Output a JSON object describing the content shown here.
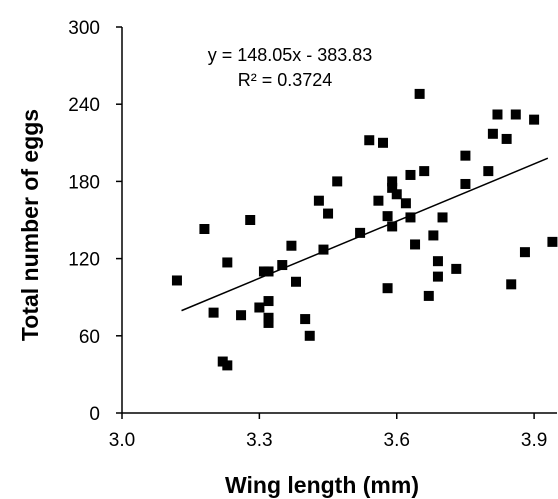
{
  "chart_data": {
    "type": "scatter",
    "title": "",
    "xlabel": "Wing length (mm)",
    "ylabel": "Total number of eggs",
    "xlim": [
      3.0,
      3.95
    ],
    "ylim": [
      0,
      300
    ],
    "xticks": [
      3.0,
      3.3,
      3.6,
      3.9
    ],
    "xtick_labels": [
      "3.0",
      "3.3",
      "3.6",
      "3.9"
    ],
    "yticks": [
      0,
      60,
      120,
      180,
      240,
      300
    ],
    "ytick_labels": [
      "0",
      "60",
      "120",
      "180",
      "240",
      "300"
    ],
    "grid": false,
    "legend": "none",
    "marker_color": "#000000",
    "annotations": {
      "equation": "y = 148.05x - 383.83",
      "r_squared": "R² = 0.3724"
    },
    "trendline": {
      "slope": 148.05,
      "intercept": -383.83,
      "x_range": [
        3.13,
        3.93
      ]
    },
    "series": [
      {
        "points": [
          [
            3.12,
            103
          ],
          [
            3.18,
            143
          ],
          [
            3.2,
            78
          ],
          [
            3.22,
            40
          ],
          [
            3.23,
            37
          ],
          [
            3.23,
            117
          ],
          [
            3.26,
            76
          ],
          [
            3.28,
            150
          ],
          [
            3.3,
            82
          ],
          [
            3.31,
            110
          ],
          [
            3.32,
            87
          ],
          [
            3.32,
            110
          ],
          [
            3.32,
            74
          ],
          [
            3.32,
            70
          ],
          [
            3.35,
            115
          ],
          [
            3.37,
            130
          ],
          [
            3.38,
            102
          ],
          [
            3.4,
            73
          ],
          [
            3.41,
            60
          ],
          [
            3.43,
            165
          ],
          [
            3.44,
            127
          ],
          [
            3.45,
            155
          ],
          [
            3.47,
            180
          ],
          [
            3.52,
            140
          ],
          [
            3.54,
            212
          ],
          [
            3.56,
            165
          ],
          [
            3.57,
            210
          ],
          [
            3.58,
            97
          ],
          [
            3.58,
            153
          ],
          [
            3.59,
            175
          ],
          [
            3.59,
            180
          ],
          [
            3.59,
            145
          ],
          [
            3.6,
            170
          ],
          [
            3.62,
            163
          ],
          [
            3.63,
            185
          ],
          [
            3.63,
            152
          ],
          [
            3.64,
            131
          ],
          [
            3.65,
            248
          ],
          [
            3.66,
            188
          ],
          [
            3.67,
            91
          ],
          [
            3.68,
            138
          ],
          [
            3.69,
            106
          ],
          [
            3.69,
            118
          ],
          [
            3.7,
            152
          ],
          [
            3.73,
            112
          ],
          [
            3.75,
            200
          ],
          [
            3.75,
            178
          ],
          [
            3.8,
            188
          ],
          [
            3.81,
            217
          ],
          [
            3.82,
            232
          ],
          [
            3.84,
            213
          ],
          [
            3.85,
            100
          ],
          [
            3.86,
            232
          ],
          [
            3.88,
            125
          ],
          [
            3.9,
            228
          ],
          [
            3.94,
            133
          ]
        ]
      }
    ]
  }
}
